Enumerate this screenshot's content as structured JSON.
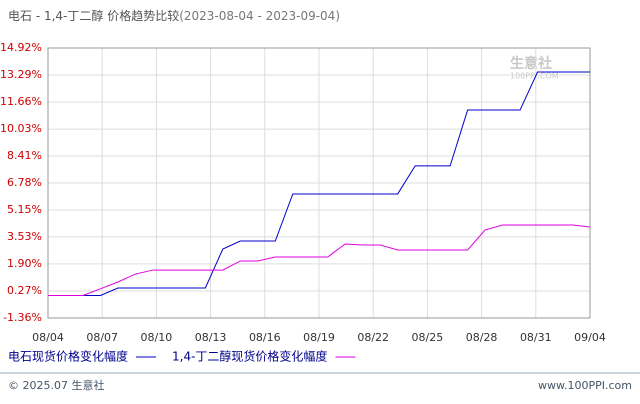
{
  "chart_data": {
    "type": "line",
    "title": "电石 - 1,4-丁二醇 价格趋势比较",
    "subtitle": "(2023-08-04 - 2023-09-04)",
    "xticks": [
      "08/04",
      "08/07",
      "08/10",
      "08/13",
      "08/16",
      "08/19",
      "08/22",
      "08/25",
      "08/28",
      "08/31",
      "09/04"
    ],
    "ylim": [
      -1.36,
      14.92
    ],
    "yticks": [
      {
        "value": 14.92,
        "label": "14.92%"
      },
      {
        "value": 13.29,
        "label": "13.29%"
      },
      {
        "value": 11.66,
        "label": "11.66%"
      },
      {
        "value": 10.03,
        "label": "10.03%"
      },
      {
        "value": 8.41,
        "label": "8.41%"
      },
      {
        "value": 6.78,
        "label": "6.78%"
      },
      {
        "value": 5.15,
        "label": "5.15%"
      },
      {
        "value": 3.53,
        "label": "3.53%"
      },
      {
        "value": 1.9,
        "label": "1.90%"
      },
      {
        "value": 0.27,
        "label": "0.27%"
      },
      {
        "value": -1.36,
        "label": "-1.36%"
      }
    ],
    "grid": true,
    "series": [
      {
        "name": "电石现货价格变化幅度",
        "color": "#0000cc",
        "values": [
          0,
          0,
          0,
          0,
          0.45,
          0.45,
          0.45,
          0.45,
          0.45,
          0.45,
          2.8,
          3.28,
          3.28,
          3.28,
          6.12,
          6.12,
          6.12,
          6.12,
          6.12,
          6.12,
          6.12,
          7.81,
          7.81,
          7.81,
          11.18,
          11.18,
          11.18,
          11.18,
          13.47,
          13.47,
          13.47,
          13.47
        ]
      },
      {
        "name": "1,4-丁二醇现货价格变化幅度",
        "color": "#e000e0",
        "values": [
          0,
          0,
          0,
          0.4,
          0.81,
          1.29,
          1.53,
          1.53,
          1.53,
          1.53,
          1.53,
          2.08,
          2.08,
          2.32,
          2.32,
          2.32,
          2.32,
          3.1,
          3.04,
          3.04,
          2.74,
          2.74,
          2.74,
          2.74,
          2.74,
          3.95,
          4.25,
          4.25,
          4.25,
          4.25,
          4.25,
          4.13
        ]
      }
    ],
    "watermark": [
      "生意社",
      "100PPI.COM"
    ]
  },
  "footer": {
    "left": "© 2025.07 生意社",
    "right": "www.100PPI.com"
  }
}
